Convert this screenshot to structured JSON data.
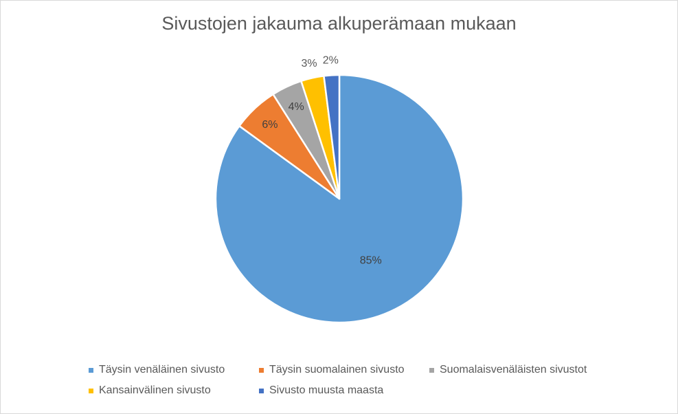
{
  "chart_data": {
    "type": "pie",
    "title": "Sivustojen jakauma alkuperämaan mukaan",
    "categories": [
      "Täysin venäläinen sivusto",
      "Täysin suomalainen sivusto",
      "Suomalaisvenäläisten sivustot",
      "Kansainvälinen sivusto",
      "Sivusto muusta maasta"
    ],
    "values": [
      85,
      6,
      4,
      3,
      2
    ],
    "labels": [
      "85%",
      "6%",
      "4%",
      "3%",
      "2%"
    ],
    "colors": [
      "#5b9bd5",
      "#ed7d31",
      "#a5a5a5",
      "#ffc000",
      "#4472c4"
    ],
    "legend_position": "bottom"
  }
}
